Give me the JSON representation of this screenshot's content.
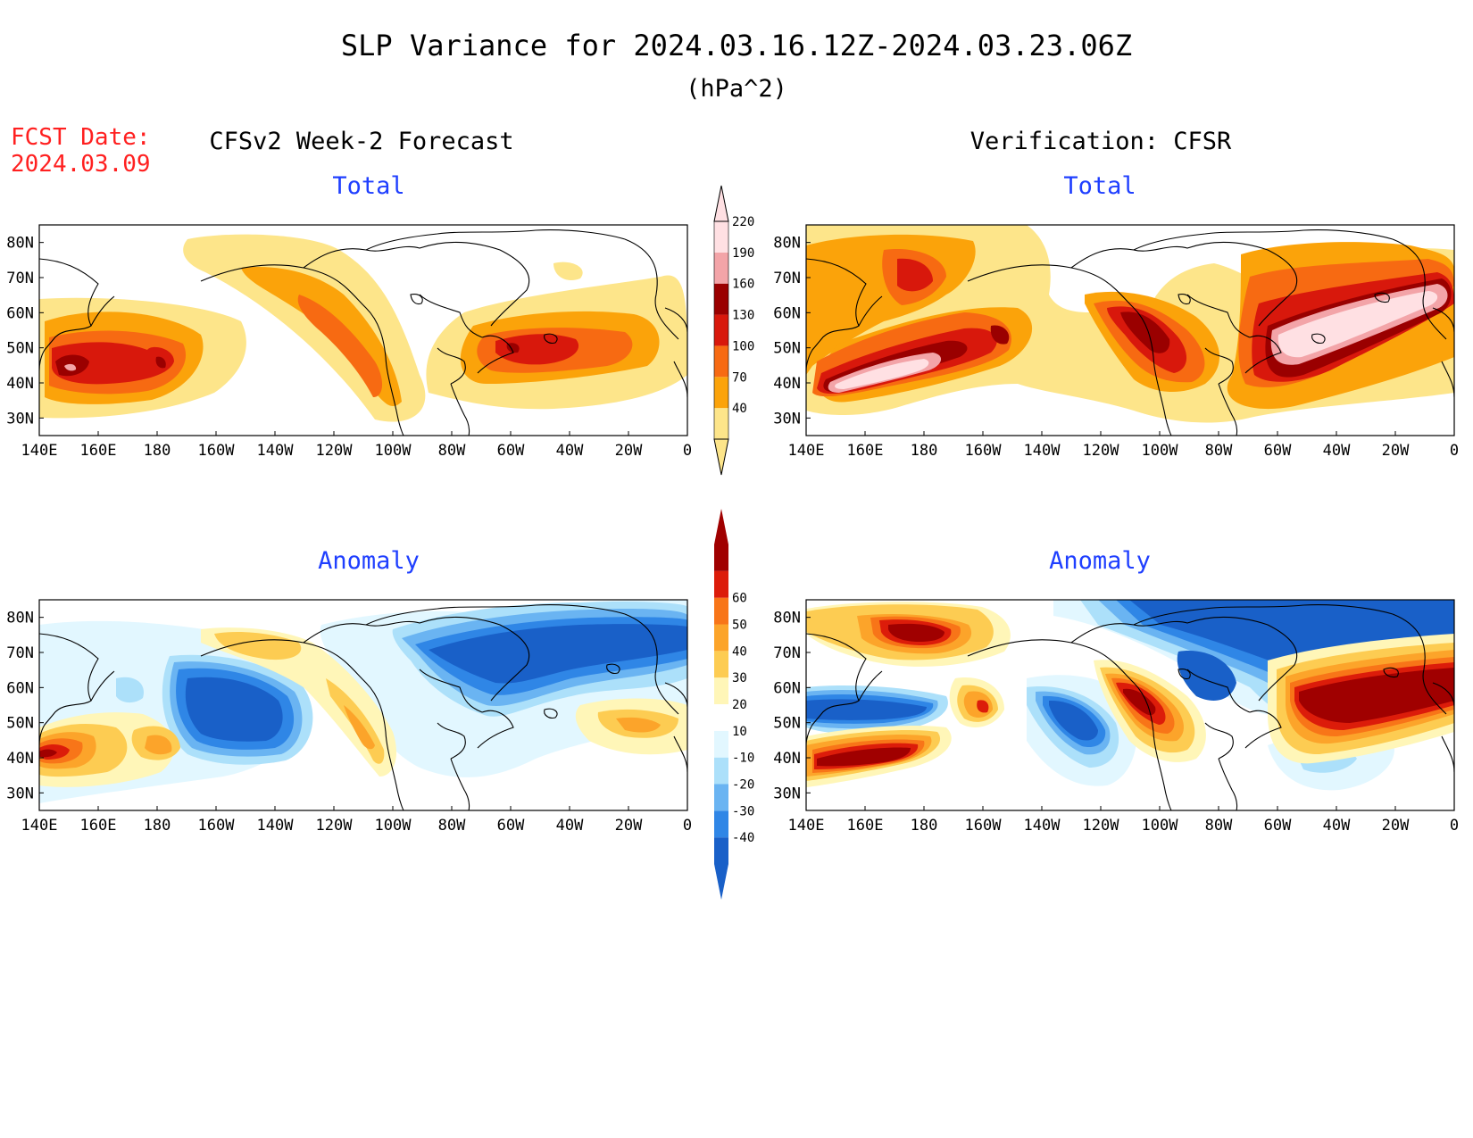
{
  "title": "SLP Variance for 2024.03.16.12Z-2024.03.23.06Z",
  "units": "(hPa^2)",
  "fcst_label": "FCST Date:",
  "fcst_date": "2024.03.09",
  "column_titles": [
    "CFSv2 Week-2 Forecast",
    "Verification: CFSR"
  ],
  "row_titles": [
    "Total",
    "Anomaly"
  ],
  "lat_labels": [
    "80N",
    "70N",
    "60N",
    "50N",
    "40N",
    "30N"
  ],
  "lon_labels": [
    "140E",
    "160E",
    "180",
    "160W",
    "140W",
    "120W",
    "100W",
    "80W",
    "60W",
    "40W",
    "20W",
    "0"
  ],
  "colors": {
    "title": "#000000",
    "fcst": "#ff2020",
    "panel_title": "#1f3fff",
    "coastline": "#000000",
    "land_fill": "#ffffff"
  },
  "total_colorbar": {
    "levels": [
      "40",
      "70",
      "100",
      "130",
      "160",
      "190",
      "220"
    ],
    "colors": [
      "#fde58a",
      "#fba30a",
      "#f76a12",
      "#d8180c",
      "#9a0000",
      "#f3a4a8",
      "#ffe0e3"
    ]
  },
  "anomaly_colorbar": {
    "levels": [
      "-40",
      "-30",
      "-20",
      "-10",
      "10",
      "20",
      "30",
      "40",
      "50",
      "60"
    ],
    "colors": [
      "#1960c8",
      "#2f86e6",
      "#6ab4f2",
      "#ace0fa",
      "#e2f7ff",
      "#ffffff",
      "#fff6b8",
      "#fdcc52",
      "#fca42a",
      "#f87518",
      "#dc1c0a",
      "#a00000"
    ]
  },
  "chart_data": [
    {
      "type": "heatmap",
      "panel": "CFSv2 Week-2 Forecast - Total",
      "units": "hPa^2",
      "x_range": [
        "140E",
        "0"
      ],
      "y_range": [
        "25N",
        "85N"
      ],
      "features": [
        {
          "region": "NW Pacific (145E-180)",
          "lat": 43,
          "max": 190
        },
        {
          "region": "Gulf of Alaska to central US (140W-100W)",
          "lat": 55,
          "max": 130
        },
        {
          "region": "NW Atlantic (70W-20W)",
          "lat": 50,
          "max": 160
        }
      ]
    },
    {
      "type": "heatmap",
      "panel": "Verification: CFSR - Total",
      "units": "hPa^2",
      "x_range": [
        "140E",
        "0"
      ],
      "y_range": [
        "25N",
        "85N"
      ],
      "features": [
        {
          "region": "NW Pacific (145E-180)",
          "lat": 40,
          "max": 220
        },
        {
          "region": "Bering Sea (175E-175W)",
          "lat": 72,
          "max": 160
        },
        {
          "region": "Canada to Great Lakes (120W-80W)",
          "lat": 55,
          "max": 190
        },
        {
          "region": "N Atlantic (75W-0)",
          "lat": 55,
          "max": 220
        }
      ]
    },
    {
      "type": "heatmap",
      "panel": "CFSv2 Week-2 Forecast - Anomaly",
      "units": "hPa^2",
      "x_range": [
        "140E",
        "0"
      ],
      "y_range": [
        "25N",
        "85N"
      ],
      "features": [
        {
          "region": "NW Pacific (140E-170E)",
          "lat": 42,
          "max": 60
        },
        {
          "region": "NE Pacific (170W-120W)",
          "lat": 52,
          "min": -40
        },
        {
          "region": "Greenland / N Atlantic (90W-0)",
          "lat": 72,
          "min": -40
        },
        {
          "region": "Hudson Bay (100W-70W)",
          "lat": 60,
          "min": -40
        }
      ]
    },
    {
      "type": "heatmap",
      "panel": "Verification: CFSR - Anomaly",
      "units": "hPa^2",
      "x_range": [
        "140E",
        "0"
      ],
      "y_range": [
        "25N",
        "85N"
      ],
      "features": [
        {
          "region": "NW Pacific (140E-175E)",
          "lat": 40,
          "max": 60
        },
        {
          "region": "Bering Sea (170E-170W)",
          "lat": 76,
          "max": 60
        },
        {
          "region": "Greenland (80W-0)",
          "lat": 78,
          "min": -40
        },
        {
          "region": "N Atlantic (70W-0)",
          "lat": 55,
          "max": 60
        },
        {
          "region": "Canada (110W-75W)",
          "lat": 62,
          "min": -40
        },
        {
          "region": "N Pacific (140E-180)",
          "lat": 52,
          "min": -40
        }
      ]
    }
  ]
}
